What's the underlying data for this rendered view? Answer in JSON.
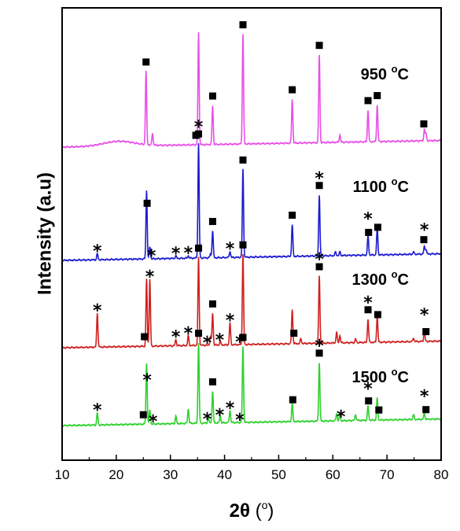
{
  "chart_data": {
    "type": "line",
    "xlabel": {
      "main": "2θ",
      "open": " (",
      "unit": "o",
      "close": ")"
    },
    "ylabel": "Intensity (a.u)",
    "xlim": [
      10,
      80
    ],
    "xticks": [
      "10",
      "20",
      "30",
      "40",
      "50",
      "60",
      "70",
      "80"
    ],
    "grid": false,
    "series": [
      {
        "temp": "950",
        "unit": "C",
        "color": "#e84ee8",
        "peaks": [
          [
            20.5,
            0.04,
            4
          ],
          [
            25.5,
            0.6
          ],
          [
            26.7,
            0.1
          ],
          [
            35.2,
            0.92
          ],
          [
            37.8,
            0.32
          ],
          [
            43.4,
            0.9
          ],
          [
            52.5,
            0.36
          ],
          [
            57.5,
            0.72
          ],
          [
            61.3,
            0.06
          ],
          [
            66.5,
            0.26
          ],
          [
            68.2,
            0.3
          ],
          [
            76.9,
            0.09
          ],
          [
            77.2,
            0.06
          ]
        ],
        "squares": [
          25.5,
          34.7,
          37.8,
          43.4,
          52.5,
          57.5,
          66.5,
          68.2,
          76.8
        ],
        "stars": []
      },
      {
        "temp": "1100",
        "unit": "C",
        "color": "#1b1bd0",
        "peaks": [
          [
            16.5,
            0.05
          ],
          [
            25.6,
            0.56
          ],
          [
            26.2,
            0.1
          ],
          [
            31.0,
            0.02
          ],
          [
            33.3,
            0.02
          ],
          [
            35.2,
            0.94
          ],
          [
            37.4,
            0.03
          ],
          [
            37.8,
            0.22
          ],
          [
            41.0,
            0.05
          ],
          [
            43.4,
            0.72
          ],
          [
            52.5,
            0.26
          ],
          [
            57.5,
            0.5
          ],
          [
            60.5,
            0.03
          ],
          [
            61.3,
            0.03
          ],
          [
            66.5,
            0.16
          ],
          [
            68.2,
            0.22
          ],
          [
            74.9,
            0.02
          ],
          [
            76.9,
            0.06
          ],
          [
            77.2,
            0.04
          ]
        ],
        "squares": [
          25.7,
          35.2,
          37.8,
          43.4,
          52.5,
          57.5,
          66.6,
          68.3,
          76.8
        ],
        "stars": [
          16.5,
          26.5,
          31.0,
          33.3,
          35.2,
          41.0,
          57.5,
          66.5,
          76.9
        ]
      },
      {
        "temp": "1300",
        "unit": "C",
        "color": "#d02020",
        "peaks": [
          [
            16.5,
            0.28
          ],
          [
            25.6,
            0.55
          ],
          [
            26.2,
            0.55
          ],
          [
            31.0,
            0.05
          ],
          [
            33.3,
            0.08
          ],
          [
            35.2,
            0.72
          ],
          [
            37.4,
            0.07
          ],
          [
            37.8,
            0.26
          ],
          [
            39.2,
            0.03
          ],
          [
            41.0,
            0.18
          ],
          [
            43.4,
            0.74
          ],
          [
            52.5,
            0.28
          ],
          [
            54.1,
            0.04
          ],
          [
            57.5,
            0.55
          ],
          [
            60.7,
            0.09
          ],
          [
            61.3,
            0.06
          ],
          [
            64.2,
            0.03
          ],
          [
            66.5,
            0.19
          ],
          [
            68.2,
            0.22
          ],
          [
            74.9,
            0.03
          ],
          [
            76.9,
            0.08
          ]
        ],
        "squares": [
          25.2,
          35.2,
          37.8,
          43.4,
          52.8,
          57.5,
          66.5,
          68.3,
          77.2
        ],
        "stars": [
          16.5,
          26.2,
          31.0,
          33.3,
          36.8,
          39.1,
          41.0,
          42.8,
          57.5,
          66.5,
          76.9
        ]
      },
      {
        "temp": "1500",
        "unit": "C",
        "color": "#2dd12d",
        "peaks": [
          [
            16.5,
            0.1
          ],
          [
            25.6,
            0.5
          ],
          [
            26.2,
            0.12
          ],
          [
            31.0,
            0.06
          ],
          [
            33.3,
            0.12
          ],
          [
            35.2,
            0.66
          ],
          [
            37.0,
            0.05
          ],
          [
            37.8,
            0.26
          ],
          [
            39.2,
            0.06
          ],
          [
            41.0,
            0.1
          ],
          [
            43.4,
            0.62
          ],
          [
            52.5,
            0.15
          ],
          [
            57.5,
            0.48
          ],
          [
            60.7,
            0.06
          ],
          [
            61.3,
            0.05
          ],
          [
            64.2,
            0.05
          ],
          [
            66.5,
            0.12
          ],
          [
            68.2,
            0.18
          ],
          [
            74.9,
            0.04
          ],
          [
            76.9,
            0.05
          ]
        ],
        "squares": [
          25.0,
          35.2,
          37.8,
          43.4,
          52.6,
          57.5,
          66.6,
          68.5,
          77.2
        ],
        "stars": [
          16.5,
          25.7,
          26.8,
          36.8,
          39.1,
          41.0,
          42.8,
          57.5,
          61.5,
          66.5,
          76.9
        ]
      }
    ]
  }
}
